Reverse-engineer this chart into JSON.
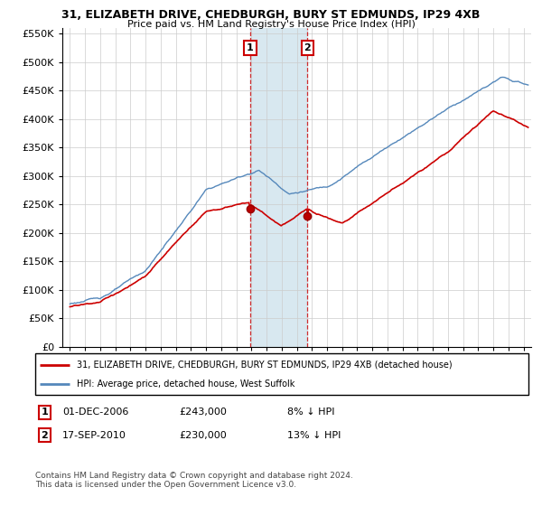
{
  "title": "31, ELIZABETH DRIVE, CHEDBURGH, BURY ST EDMUNDS, IP29 4XB",
  "subtitle": "Price paid vs. HM Land Registry's House Price Index (HPI)",
  "ylim": [
    0,
    560000
  ],
  "yticks": [
    0,
    50000,
    100000,
    150000,
    200000,
    250000,
    300000,
    350000,
    400000,
    450000,
    500000,
    550000
  ],
  "xlim_start": 1994.5,
  "xlim_end": 2025.5,
  "legend_line1": "31, ELIZABETH DRIVE, CHEDBURGH, BURY ST EDMUNDS, IP29 4XB (detached house)",
  "legend_line2": "HPI: Average price, detached house, West Suffolk",
  "annotation1": {
    "num": "1",
    "date": "01-DEC-2006",
    "price": "£243,000",
    "pct": "8% ↓ HPI",
    "x": 2006.92
  },
  "annotation2": {
    "num": "2",
    "date": "17-SEP-2010",
    "price": "£230,000",
    "pct": "13% ↓ HPI",
    "x": 2010.71
  },
  "footer": "Contains HM Land Registry data © Crown copyright and database right 2024.\nThis data is licensed under the Open Government Licence v3.0.",
  "house_color": "#cc0000",
  "hpi_color": "#5588bb",
  "span_color": "#d8e8f0",
  "background_color": "#ffffff",
  "grid_color": "#cccccc"
}
